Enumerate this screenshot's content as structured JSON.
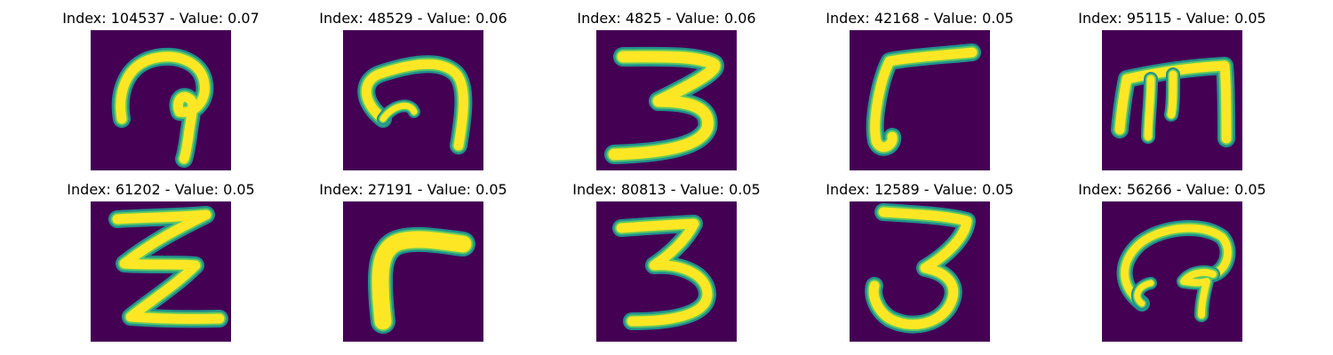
{
  "figure": {
    "panels": [
      {
        "index": "104537",
        "value": "0.07"
      },
      {
        "index": "48529",
        "value": "0.06"
      },
      {
        "index": "4825",
        "value": "0.06"
      },
      {
        "index": "42168",
        "value": "0.05"
      },
      {
        "index": "95115",
        "value": "0.05"
      },
      {
        "index": "61202",
        "value": "0.05"
      },
      {
        "index": "27191",
        "value": "0.05"
      },
      {
        "index": "80813",
        "value": "0.05"
      },
      {
        "index": "12589",
        "value": "0.05"
      },
      {
        "index": "56266",
        "value": "0.05"
      }
    ],
    "label_text": {
      "panel_0": "Index: 104537 - Value: 0.07",
      "panel_1": "Index: 48529 - Value: 0.06",
      "panel_2": "Index: 4825 - Value: 0.06",
      "panel_3": "Index: 42168 - Value: 0.05",
      "panel_4": "Index: 95115 - Value: 0.05",
      "panel_5": "Index: 61202 - Value: 0.05",
      "panel_6": "Index: 27191 - Value: 0.05",
      "panel_7": "Index: 80813 - Value: 0.05",
      "panel_8": "Index: 12589 - Value: 0.05",
      "panel_9": "Index: 56266 - Value: 0.05"
    },
    "colors": {
      "background": "#440154",
      "stroke_outer": "#21908d",
      "stroke_mid": "#5dc863",
      "stroke_core": "#fde725"
    }
  }
}
